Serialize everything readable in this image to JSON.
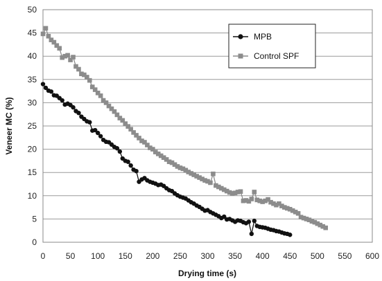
{
  "chart_data": {
    "type": "scatter",
    "title": "",
    "xlabel": "Drying time (s)",
    "ylabel": "Veneer MC (%)",
    "xlim": [
      0,
      600
    ],
    "ylim": [
      0,
      50
    ],
    "x_ticks": [
      0,
      50,
      100,
      150,
      200,
      250,
      300,
      350,
      400,
      450,
      500,
      550,
      600
    ],
    "y_ticks": [
      0,
      5,
      10,
      15,
      20,
      25,
      30,
      35,
      40,
      45,
      50
    ],
    "grid": "horizontal",
    "legend_position": "top-right",
    "series": [
      {
        "name": "MPB",
        "color": "#111111",
        "marker": "circle",
        "x": [
          0,
          5,
          10,
          15,
          20,
          25,
          30,
          35,
          40,
          45,
          50,
          55,
          60,
          65,
          70,
          75,
          80,
          85,
          90,
          95,
          100,
          105,
          110,
          115,
          120,
          125,
          130,
          135,
          140,
          145,
          150,
          155,
          160,
          165,
          170,
          175,
          180,
          185,
          190,
          195,
          200,
          205,
          210,
          215,
          220,
          225,
          230,
          235,
          240,
          245,
          250,
          255,
          260,
          265,
          270,
          275,
          280,
          285,
          290,
          295,
          300,
          305,
          310,
          315,
          320,
          325,
          330,
          335,
          340,
          345,
          350,
          355,
          360,
          365,
          370,
          375,
          380,
          385,
          390,
          395,
          400,
          405,
          410,
          415,
          420,
          425,
          430,
          435,
          440,
          445,
          450
        ],
        "y": [
          34,
          33.2,
          32.6,
          32.4,
          31.6,
          31.5,
          31,
          30.5,
          29.6,
          29.8,
          29.5,
          29,
          28.2,
          27.8,
          27,
          26.5,
          26,
          25.8,
          24,
          24.1,
          23.5,
          22.8,
          22,
          21.6,
          21.5,
          21,
          20.5,
          20.2,
          19.5,
          18,
          17.5,
          17.3,
          16.5,
          15.6,
          15.3,
          13,
          13.5,
          13.8,
          13.3,
          13,
          12.8,
          12.6,
          12.3,
          12.4,
          12.1,
          11.6,
          11.2,
          11,
          10.5,
          10.1,
          9.8,
          9.6,
          9.4,
          9,
          8.6,
          8.3,
          7.9,
          7.6,
          7.2,
          6.8,
          6.9,
          6.5,
          6.2,
          5.9,
          5.6,
          5.2,
          5.5,
          4.9,
          5,
          4.7,
          4.4,
          4.7,
          4.6,
          4.3,
          4.1,
          4.4,
          1.8,
          4.6,
          3.5,
          3.3,
          3.2,
          3.1,
          2.9,
          2.7,
          2.6,
          2.4,
          2.3,
          2.1,
          1.9,
          1.8,
          1.6
        ]
      },
      {
        "name": "Control SPF",
        "color": "#8c8c8c",
        "marker": "square",
        "x": [
          0,
          5,
          10,
          15,
          20,
          25,
          30,
          35,
          40,
          45,
          50,
          55,
          60,
          65,
          70,
          75,
          80,
          85,
          90,
          95,
          100,
          105,
          110,
          115,
          120,
          125,
          130,
          135,
          140,
          145,
          150,
          155,
          160,
          165,
          170,
          175,
          180,
          185,
          190,
          195,
          200,
          205,
          210,
          215,
          220,
          225,
          230,
          235,
          240,
          245,
          250,
          255,
          260,
          265,
          270,
          275,
          280,
          285,
          290,
          295,
          300,
          305,
          310,
          315,
          320,
          325,
          330,
          335,
          340,
          345,
          350,
          355,
          360,
          365,
          370,
          375,
          380,
          385,
          390,
          395,
          400,
          405,
          410,
          415,
          420,
          425,
          430,
          435,
          440,
          445,
          450,
          455,
          460,
          465,
          470,
          475,
          480,
          485,
          490,
          495,
          500,
          505,
          510,
          515
        ],
        "y": [
          44.8,
          46,
          44.3,
          43.5,
          43,
          42.3,
          41.7,
          39.7,
          40,
          40.2,
          39.2,
          39.8,
          37.8,
          37.2,
          36.2,
          36,
          35.5,
          34.8,
          33.4,
          32.8,
          32.1,
          31.5,
          30.5,
          30,
          29.3,
          28.7,
          28.1,
          27.4,
          26.7,
          26.2,
          25.5,
          24.9,
          24.3,
          23.6,
          23,
          22.4,
          21.8,
          21.5,
          20.9,
          20.3,
          20,
          19.4,
          19,
          18.6,
          18.2,
          17.8,
          17.3,
          17.1,
          16.7,
          16.3,
          16,
          15.8,
          15.5,
          15.1,
          14.8,
          14.5,
          14.2,
          13.9,
          13.6,
          13.3,
          13.1,
          12.8,
          14.7,
          12.2,
          11.9,
          11.6,
          11.3,
          11,
          10.7,
          10.5,
          10.6,
          10.8,
          10.9,
          8.9,
          9,
          8.8,
          9.3,
          10.8,
          9.1,
          8.9,
          8.7,
          8.9,
          9.2,
          8.6,
          8.3,
          8,
          8.3,
          7.8,
          7.5,
          7.3,
          7.1,
          6.8,
          6.5,
          6.2,
          5.4,
          5.2,
          5,
          4.8,
          4.5,
          4.3,
          4,
          3.7,
          3.4,
          3.1
        ]
      }
    ]
  }
}
